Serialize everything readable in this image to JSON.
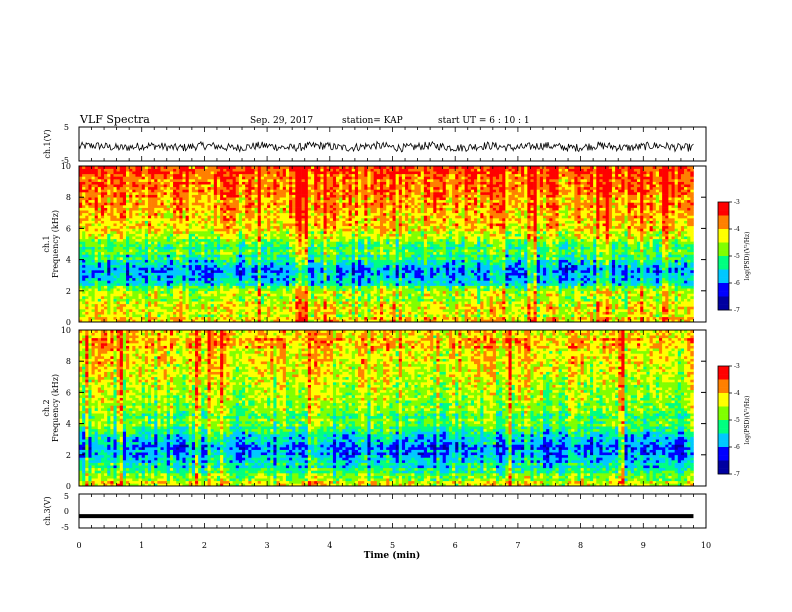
{
  "header": {
    "title": "VLF Spectra",
    "date": "Sep. 29, 2017",
    "station": "station= KAP",
    "start_ut": "start  UT =  6 : 10 : 1"
  },
  "chart_data": [
    {
      "type": "line",
      "name": "ch1-waveform",
      "ylabel": "ch.1(V)",
      "ylim": [
        -5,
        5
      ],
      "y_ticks": [
        "5",
        "-5"
      ],
      "xlim": [
        0,
        10
      ],
      "data_end_min": 9.8,
      "description_values": {
        "mean": -0.8,
        "amplitude": 1.2
      }
    },
    {
      "type": "heatmap",
      "name": "ch1-spectrogram",
      "ylabel": "ch.1\nFrequency (kHz)",
      "ylim": [
        0,
        10
      ],
      "y_ticks": [
        "0",
        "2",
        "4",
        "6",
        "8",
        "10"
      ],
      "xlim": [
        0,
        10
      ],
      "data_end_min": 9.8,
      "colorbar": {
        "label": "log(PSD)(V²/Hz)",
        "range": [
          -7,
          -3
        ],
        "ticks": [
          "-3",
          "-4",
          "-5",
          "-6",
          "-7"
        ],
        "colors": [
          "#0000a0",
          "#0000ff",
          "#00c8ff",
          "#00ff80",
          "#80ff00",
          "#ffff00",
          "#ff8000",
          "#ff0000"
        ]
      },
      "band_profile_khz_logpsd": [
        [
          0,
          -3.9
        ],
        [
          0.5,
          -4.4
        ],
        [
          1,
          -4.3
        ],
        [
          1.5,
          -4.7
        ],
        [
          2,
          -4.6
        ],
        [
          2.5,
          -5.6
        ],
        [
          3,
          -6.0
        ],
        [
          3.5,
          -5.7
        ],
        [
          4,
          -5.3
        ],
        [
          4.5,
          -5.1
        ],
        [
          5,
          -5.0
        ],
        [
          5.5,
          -4.4
        ],
        [
          6,
          -4.2
        ],
        [
          7,
          -4.0
        ],
        [
          8,
          -3.8
        ],
        [
          9,
          -3.7
        ],
        [
          10,
          -3.6
        ]
      ]
    },
    {
      "type": "heatmap",
      "name": "ch2-spectrogram",
      "ylabel": "ch.2\nFrequency (kHz)",
      "ylim": [
        0,
        10
      ],
      "y_ticks": [
        "0",
        "2",
        "4",
        "6",
        "8",
        "10"
      ],
      "xlim": [
        0,
        10
      ],
      "data_end_min": 9.8,
      "colorbar": {
        "label": "log(PSD)(V²/Hz)",
        "range": [
          -7,
          -3
        ],
        "ticks": [
          "-3",
          "-4",
          "-5",
          "-6",
          "-7"
        ],
        "colors": [
          "#0000a0",
          "#0000ff",
          "#00c8ff",
          "#00ff80",
          "#80ff00",
          "#ffff00",
          "#ff8000",
          "#ff0000"
        ]
      },
      "band_profile_khz_logpsd": [
        [
          0,
          -4.3
        ],
        [
          0.5,
          -4.6
        ],
        [
          1,
          -5.3
        ],
        [
          1.5,
          -5.6
        ],
        [
          2,
          -5.9
        ],
        [
          2.5,
          -6.1
        ],
        [
          3,
          -5.7
        ],
        [
          3.5,
          -5.3
        ],
        [
          4,
          -5.0
        ],
        [
          5,
          -4.8
        ],
        [
          6,
          -4.6
        ],
        [
          7,
          -4.4
        ],
        [
          8,
          -4.2
        ],
        [
          9,
          -4.1
        ],
        [
          10,
          -4.0
        ]
      ]
    },
    {
      "type": "line",
      "name": "ch3-waveform",
      "ylabel": "ch.3(V)",
      "ylim": [
        -5,
        5
      ],
      "y_ticks": [
        "5",
        "0",
        "-5"
      ],
      "xlim": [
        0,
        10
      ],
      "data_end_min": 9.8,
      "constant_value": -1.5
    }
  ],
  "x_axis": {
    "label": "Time (min)",
    "ticks": [
      "0",
      "1",
      "2",
      "3",
      "4",
      "5",
      "6",
      "7",
      "8",
      "9",
      "10"
    ]
  }
}
